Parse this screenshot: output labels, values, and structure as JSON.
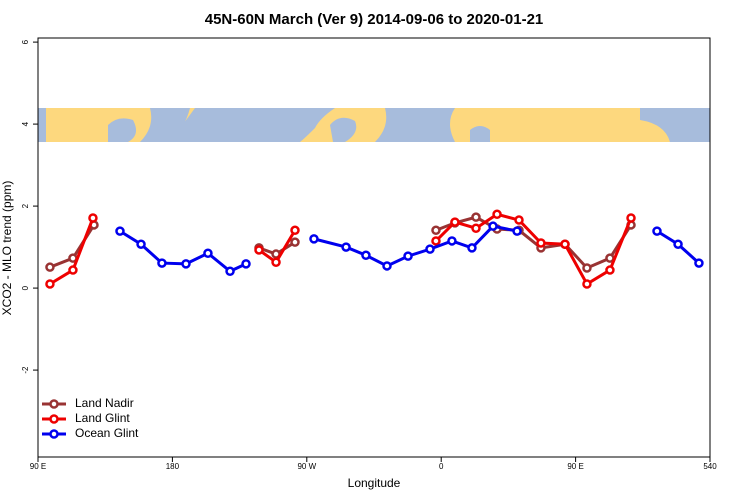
{
  "chart_data": {
    "type": "line",
    "title": "45N-60N March (Ver 9)   2014-09-06 to 2020-01-21",
    "x_label": "Longitude",
    "y_label": "XCO2 - MLO trend (ppm)",
    "xlim": [
      90,
      540
    ],
    "xticks": [
      {
        "value": 90,
        "label": "90 E"
      },
      180,
      {
        "value": 270,
        "label": "90 W"
      },
      {
        "value": 360,
        "label": "0"
      },
      {
        "value": 450,
        "label": "90 E"
      },
      540
    ],
    "ylim": [
      -4.12,
      6.1
    ],
    "yticks": [
      6,
      4,
      2,
      0,
      -2
    ],
    "legend": "bottom-left",
    "series": [
      {
        "name": "Land Nadir",
        "color": "#993333",
        "x": [
          98.0,
          113.4,
          127.5,
          null,
          238.0,
          249.4,
          262.1,
          null,
          356.5,
          369.2,
          383.3,
          397.4,
          412.1,
          426.8,
          442.9,
          457.6,
          473.0,
          487.1
        ],
        "values": [
          0.51,
          0.73,
          1.54,
          null,
          0.98,
          0.83,
          1.12,
          null,
          1.41,
          1.59,
          1.73,
          1.44,
          1.41,
          0.98,
          1.07,
          0.49,
          0.73,
          1.54
        ]
      },
      {
        "name": "Land Glint",
        "color": "#ee0000",
        "x": [
          98.0,
          113.4,
          126.8,
          null,
          238.0,
          249.4,
          262.1,
          null,
          356.5,
          369.2,
          383.3,
          397.4,
          412.1,
          426.8,
          442.9,
          457.6,
          473.0,
          487.1
        ],
        "values": [
          0.1,
          0.44,
          1.71,
          null,
          0.93,
          0.63,
          1.41,
          null,
          1.15,
          1.61,
          1.46,
          1.8,
          1.66,
          1.1,
          1.07,
          0.1,
          0.44,
          1.71
        ]
      },
      {
        "name": "Ocean Glint",
        "color": "#0000ee",
        "x": [
          144.9,
          159.0,
          173.0,
          189.1,
          203.8,
          218.6,
          229.3,
          null,
          274.8,
          296.3,
          309.6,
          323.7,
          337.8,
          352.5,
          367.2,
          380.6,
          394.7,
          410.8,
          null,
          504.5,
          518.6,
          532.6
        ],
        "values": [
          1.39,
          1.07,
          0.61,
          0.59,
          0.85,
          0.41,
          0.59,
          null,
          1.2,
          1.0,
          0.8,
          0.54,
          0.78,
          0.95,
          1.15,
          0.98,
          1.51,
          1.39,
          null,
          1.39,
          1.07,
          0.61
        ]
      }
    ]
  }
}
